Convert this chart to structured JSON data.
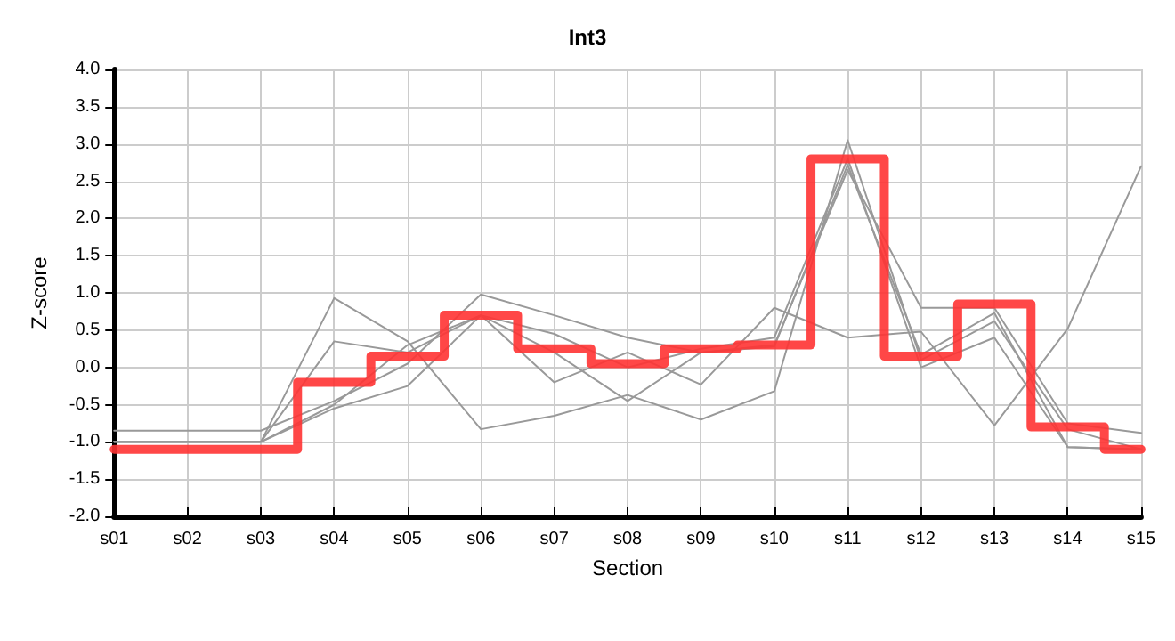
{
  "chart_data": {
    "type": "line",
    "title": "Int3",
    "xlabel": "Section",
    "ylabel": "Z-score",
    "categories": [
      "s01",
      "s02",
      "s03",
      "s04",
      "s05",
      "s06",
      "s07",
      "s08",
      "s09",
      "s10",
      "s11",
      "s12",
      "s13",
      "s14",
      "s15"
    ],
    "ylim": [
      -2,
      4
    ],
    "yticks": [
      {
        "value": -2,
        "label": "-2.0"
      },
      {
        "value": -1.5,
        "label": "-1.5"
      },
      {
        "value": -1,
        "label": "-1.0"
      },
      {
        "value": -0.5,
        "label": "-0.5"
      },
      {
        "value": 0,
        "label": "0.0"
      },
      {
        "value": 0.5,
        "label": "0.5"
      },
      {
        "value": 1,
        "label": "1.0"
      },
      {
        "value": 1.5,
        "label": "1.5"
      },
      {
        "value": 2,
        "label": "2.0"
      },
      {
        "value": 2.5,
        "label": "2.5"
      },
      {
        "value": 3,
        "label": "3.0"
      },
      {
        "value": 3.5,
        "label": "3.5"
      },
      {
        "value": 4,
        "label": "4.0"
      }
    ],
    "grid": true,
    "marker": "none",
    "series": [
      {
        "color": "#999999",
        "values": [
          -1.0,
          -1.0,
          -1.0,
          -0.55,
          -0.25,
          0.7,
          -0.2,
          0.2,
          -0.23,
          0.8,
          0.4,
          0.48,
          -0.78,
          0.52,
          2.7
        ]
      },
      {
        "color": "#999999",
        "values": [
          -0.85,
          -0.85,
          -0.85,
          -0.45,
          0.05,
          0.98,
          0.7,
          0.4,
          0.2,
          0.3,
          2.65,
          0.8,
          0.8,
          -0.75,
          -0.88
        ]
      },
      {
        "color": "#999999",
        "values": [
          -1.0,
          -1.0,
          -1.0,
          0.93,
          0.35,
          -0.83,
          -0.65,
          -0.37,
          -0.7,
          -0.32,
          3.05,
          0.1,
          0.62,
          -0.83,
          -1.1
        ]
      },
      {
        "color": "#999999",
        "values": [
          -1.0,
          -1.0,
          -1.0,
          0.35,
          0.2,
          0.7,
          0.45,
          0.0,
          0.25,
          0.4,
          2.8,
          0.0,
          0.4,
          -1.07,
          -1.1
        ]
      },
      {
        "color": "#999999",
        "values": [
          -1.0,
          -1.0,
          -1.0,
          -0.5,
          0.3,
          0.7,
          0.2,
          -0.45,
          0.2,
          0.28,
          2.72,
          0.17,
          0.73,
          -1.07,
          -1.1
        ]
      },
      {
        "type": "step",
        "color": "#ff3333",
        "values": [
          -1.1,
          -1.1,
          -1.1,
          -0.2,
          0.15,
          0.7,
          0.25,
          0.05,
          0.25,
          0.3,
          2.8,
          0.15,
          0.85,
          -0.8,
          -1.1
        ]
      }
    ]
  }
}
